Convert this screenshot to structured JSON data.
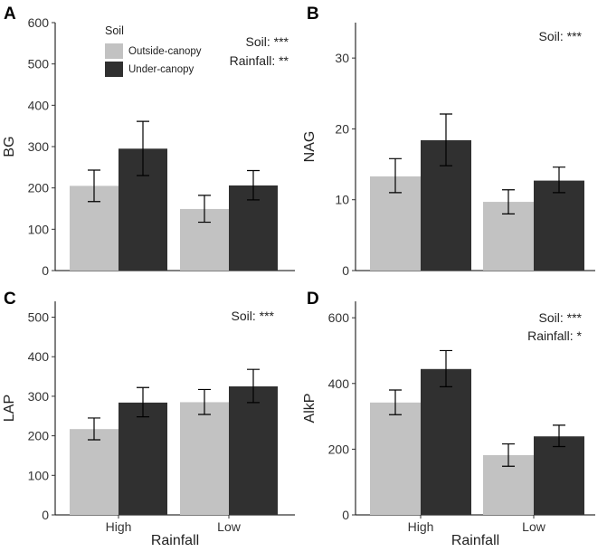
{
  "chart_data": [
    {
      "type": "bar",
      "panel": "A",
      "ylabel": "BG",
      "xlabel": "",
      "categories": [
        "High",
        "Low"
      ],
      "ylim": [
        0,
        600
      ],
      "yticks": [
        0,
        100,
        200,
        300,
        400,
        500,
        600
      ],
      "series": [
        {
          "name": "Outside-canopy",
          "values": [
            205,
            149
          ],
          "err_low": [
            167,
            117
          ],
          "err_high": [
            243,
            182
          ]
        },
        {
          "name": "Under-canopy",
          "values": [
            295,
            206
          ],
          "err_low": [
            230,
            171
          ],
          "err_high": [
            361,
            242
          ]
        }
      ],
      "annotations": [
        "Soil: ***",
        "Rainfall: **"
      ],
      "legend": {
        "title": "Soil",
        "entries": [
          "Outside-canopy",
          "Under-canopy"
        ],
        "placement": "top-left"
      },
      "show_xticks": false
    },
    {
      "type": "bar",
      "panel": "B",
      "ylabel": "NAG",
      "xlabel": "",
      "categories": [
        "High",
        "Low"
      ],
      "ylim": [
        0,
        35
      ],
      "yticks": [
        0,
        10,
        20,
        30
      ],
      "series": [
        {
          "name": "Outside-canopy",
          "values": [
            13.3,
            9.7
          ],
          "err_low": [
            11.0,
            8.0
          ],
          "err_high": [
            15.8,
            11.4
          ]
        },
        {
          "name": "Under-canopy",
          "values": [
            18.4,
            12.7
          ],
          "err_low": [
            14.8,
            11.0
          ],
          "err_high": [
            22.1,
            14.6
          ]
        }
      ],
      "annotations": [
        "Soil: ***"
      ],
      "show_xticks": false
    },
    {
      "type": "bar",
      "panel": "C",
      "ylabel": "LAP",
      "xlabel": "Rainfall",
      "categories": [
        "High",
        "Low"
      ],
      "ylim": [
        0,
        540
      ],
      "yticks": [
        0,
        100,
        200,
        300,
        400,
        500
      ],
      "series": [
        {
          "name": "Outside-canopy",
          "values": [
            217,
            285
          ],
          "err_low": [
            190,
            254
          ],
          "err_high": [
            245,
            317
          ]
        },
        {
          "name": "Under-canopy",
          "values": [
            284,
            325
          ],
          "err_low": [
            248,
            284
          ],
          "err_high": [
            322,
            368
          ]
        }
      ],
      "annotations": [
        "Soil: ***"
      ],
      "show_xticks": true
    },
    {
      "type": "bar",
      "panel": "D",
      "ylabel": "AlkP",
      "xlabel": "Rainfall",
      "categories": [
        "High",
        "Low"
      ],
      "ylim": [
        0,
        650
      ],
      "yticks": [
        0,
        200,
        400,
        600
      ],
      "series": [
        {
          "name": "Outside-canopy",
          "values": [
            342,
            182
          ],
          "err_low": [
            305,
            148
          ],
          "err_high": [
            380,
            216
          ]
        },
        {
          "name": "Under-canopy",
          "values": [
            444,
            239
          ],
          "err_low": [
            390,
            208
          ],
          "err_high": [
            500,
            273
          ]
        }
      ],
      "annotations": [
        "Soil: ***",
        "Rainfall: *"
      ],
      "show_xticks": true
    }
  ],
  "colors": {
    "outside": "#c2c2c2",
    "under": "#303030"
  }
}
